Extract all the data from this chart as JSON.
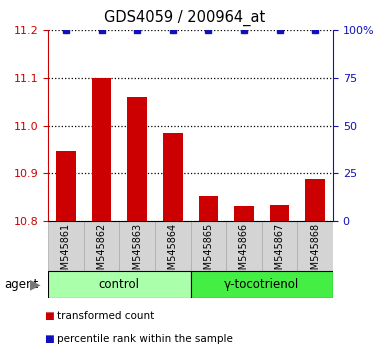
{
  "title": "GDS4059 / 200964_at",
  "samples": [
    "GSM545861",
    "GSM545862",
    "GSM545863",
    "GSM545864",
    "GSM545865",
    "GSM545866",
    "GSM545867",
    "GSM545868"
  ],
  "bar_values": [
    10.947,
    11.1,
    11.06,
    10.985,
    10.852,
    10.832,
    10.834,
    10.888
  ],
  "percentile_values": [
    100,
    100,
    100,
    100,
    100,
    100,
    100,
    100
  ],
  "bar_color": "#cc0000",
  "percentile_color": "#1111bb",
  "ylim_left": [
    10.8,
    11.2
  ],
  "ylim_right": [
    0,
    100
  ],
  "yticks_left": [
    10.8,
    10.9,
    11.0,
    11.1,
    11.2
  ],
  "yticks_right": [
    0,
    25,
    50,
    75,
    100
  ],
  "group1_label": "control",
  "group1_color": "#aaffaa",
  "group1_n": 4,
  "group2_label": "γ-tocotrienol",
  "group2_color": "#44ee44",
  "group2_n": 4,
  "agent_label": "agent",
  "legend1_label": "transformed count",
  "legend1_color": "#cc0000",
  "legend2_label": "percentile rank within the sample",
  "legend2_color": "#1111bb",
  "sample_box_color": "#d4d4d4",
  "title_fontsize": 10.5,
  "axis_fontsize": 8,
  "sample_fontsize": 7,
  "legend_fontsize": 7.5,
  "group_fontsize": 8.5
}
